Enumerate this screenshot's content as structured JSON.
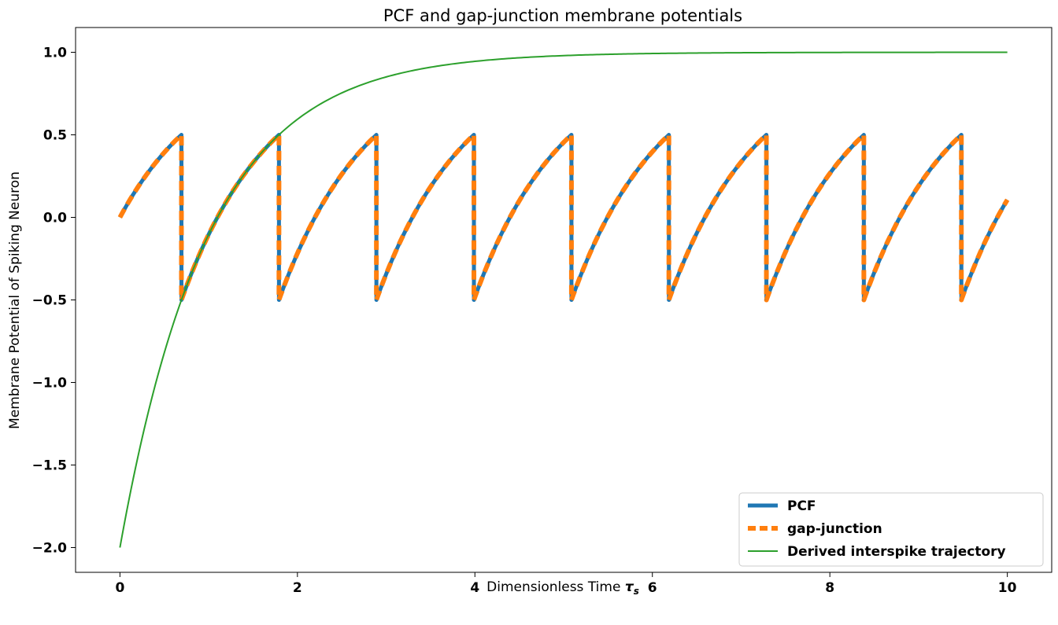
{
  "chart_data": {
    "type": "line",
    "title": "PCF and gap-junction membrane potentials",
    "xlabel": "Dimensionless Time",
    "xlabel_symbol": "τ",
    "xlabel_subscript": "s",
    "ylabel": "Membrane Potential of Spiking Neuron",
    "xlim": [
      -0.5,
      10.5
    ],
    "ylim": [
      -2.15,
      1.15
    ],
    "xticks": [
      0,
      2,
      4,
      6,
      8,
      10
    ],
    "yticks": [
      1.0,
      0.5,
      0.0,
      -0.5,
      -1.0,
      -1.5,
      -2.0
    ],
    "xtick_labels": [
      "0",
      "2",
      "4",
      "6",
      "8",
      "10"
    ],
    "ytick_labels": [
      "1.0",
      "0.5",
      "0.0",
      "−0.5",
      "−1.0",
      "−1.5",
      "−2.0"
    ],
    "grid": false,
    "legend_position": "lower-right",
    "model": {
      "asymptote": 1.0,
      "threshold": 0.5,
      "reset": -0.5,
      "spike_times": [
        0.693,
        1.792,
        2.89,
        3.989,
        5.088,
        6.186,
        7.285,
        8.383,
        9.482
      ],
      "end_value": 0.11,
      "derived_start": -2.0
    },
    "series": [
      {
        "name": "PCF",
        "color": "#1f77b4",
        "style": "solid",
        "width": 5,
        "x": [
          0,
          0.35,
          0.693,
          0.693,
          1.0,
          1.4,
          1.792,
          1.792,
          2.2,
          2.6,
          2.89,
          2.89,
          3.3,
          3.7,
          3.989,
          3.989,
          4.4,
          4.8,
          5.088,
          5.088,
          5.5,
          5.9,
          6.186,
          6.186,
          6.6,
          7.0,
          7.285,
          7.285,
          7.7,
          8.1,
          8.383,
          8.383,
          8.8,
          9.2,
          9.482,
          9.482,
          9.8,
          10.0
        ],
        "y": [
          0.0,
          0.295,
          0.5,
          -0.5,
          -0.103,
          0.268,
          0.5,
          -0.5,
          -0.0,
          0.33,
          0.5,
          -0.5,
          -0.0,
          0.33,
          0.5,
          -0.5,
          -0.0,
          0.33,
          0.5,
          -0.5,
          -0.0,
          0.33,
          0.5,
          -0.5,
          -0.0,
          0.33,
          0.5,
          -0.5,
          -0.0,
          0.33,
          0.5,
          -0.5,
          -0.0,
          0.33,
          0.5,
          -0.5,
          -0.095,
          0.11
        ]
      },
      {
        "name": "gap-junction",
        "color": "#ff7f0e",
        "style": "dashed",
        "width": 6,
        "x": [
          0,
          0.35,
          0.693,
          0.693,
          1.0,
          1.4,
          1.792,
          1.792,
          2.2,
          2.6,
          2.89,
          2.89,
          3.3,
          3.7,
          3.989,
          3.989,
          4.4,
          4.8,
          5.088,
          5.088,
          5.5,
          5.9,
          6.186,
          6.186,
          6.6,
          7.0,
          7.285,
          7.285,
          7.7,
          8.1,
          8.383,
          8.383,
          8.8,
          9.2,
          9.482,
          9.482,
          9.8,
          10.0
        ],
        "y": [
          0.0,
          0.295,
          0.5,
          -0.5,
          -0.103,
          0.268,
          0.5,
          -0.5,
          -0.0,
          0.33,
          0.5,
          -0.5,
          -0.0,
          0.33,
          0.5,
          -0.5,
          -0.0,
          0.33,
          0.5,
          -0.5,
          -0.0,
          0.33,
          0.5,
          -0.5,
          -0.0,
          0.33,
          0.5,
          -0.5,
          -0.0,
          0.33,
          0.5,
          -0.5,
          -0.0,
          0.33,
          0.5,
          -0.5,
          -0.095,
          0.11
        ]
      },
      {
        "name": "Derived interspike trajectory",
        "color": "#2ca02c",
        "style": "solid",
        "width": 2,
        "x": [
          0,
          0.5,
          0.693,
          1.0,
          1.5,
          1.792,
          2,
          3,
          4,
          5,
          6,
          7,
          8,
          9,
          10
        ],
        "y": [
          -2.0,
          -0.82,
          -0.5,
          -0.103,
          0.331,
          0.5,
          0.594,
          0.851,
          0.945,
          0.98,
          0.993,
          0.997,
          0.999,
          1.0,
          1.0
        ]
      }
    ]
  }
}
